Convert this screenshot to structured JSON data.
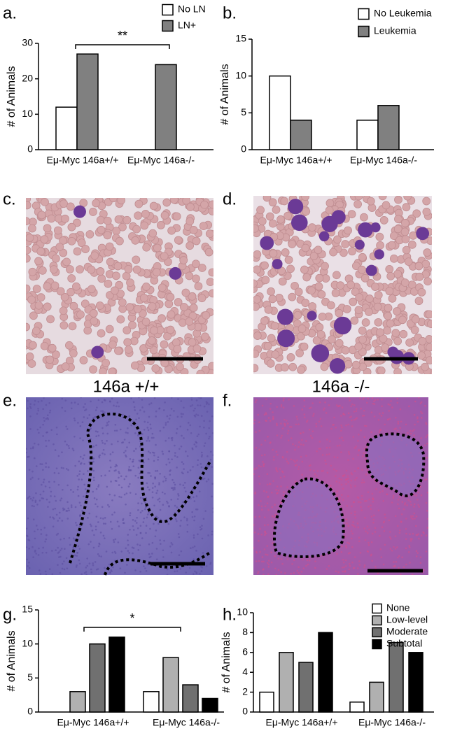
{
  "chart_data": [
    {
      "type": "bar",
      "panel_label": "a.",
      "y_label": "# of Animals",
      "annotation": "**",
      "categories": [
        "Eμ-Myc 146a+/+",
        "Eμ-Myc 146a-/-"
      ],
      "series": [
        {
          "name": "No LN",
          "color": "#ffffff",
          "values": [
            12,
            0
          ]
        },
        {
          "name": "LN+",
          "color": "#808080",
          "values": [
            27,
            24
          ]
        }
      ],
      "ylim": [
        0,
        30
      ],
      "yticks": [
        0,
        10,
        20,
        30
      ],
      "legend": "top-right"
    },
    {
      "type": "bar",
      "panel_label": "b.",
      "y_label": "# of Animals",
      "categories": [
        "Eμ-Myc 146a+/+",
        "Eμ-Myc 146a-/-"
      ],
      "series": [
        {
          "name": "No Leukemia",
          "color": "#ffffff",
          "values": [
            10,
            4
          ]
        },
        {
          "name": "Leukemia",
          "color": "#808080",
          "values": [
            4,
            6
          ]
        }
      ],
      "ylim": [
        0,
        15
      ],
      "yticks": [
        0,
        5,
        10,
        15
      ],
      "legend": "top-right"
    },
    {
      "type": "bar",
      "panel_label": "g.",
      "y_label": "# of Animals",
      "annotation": "*",
      "categories": [
        "Eμ-Myc 146a+/+",
        "Eμ-Myc 146a-/-"
      ],
      "series": [
        {
          "name": "None",
          "color": "#ffffff",
          "values": [
            0,
            3
          ]
        },
        {
          "name": "Low-level",
          "color": "#b0b0b0",
          "values": [
            3,
            8
          ]
        },
        {
          "name": "Moderate",
          "color": "#707070",
          "values": [
            10,
            4
          ]
        },
        {
          "name": "Subtotal",
          "color": "#000000",
          "values": [
            11,
            2
          ]
        }
      ],
      "ylim": [
        0,
        15
      ],
      "yticks": [
        0,
        5,
        10,
        15
      ]
    },
    {
      "type": "bar",
      "panel_label": "h.",
      "y_label": "# of Animals",
      "categories": [
        "Eμ-Myc 146a+/+",
        "Eμ-Myc 146a-/-"
      ],
      "series": [
        {
          "name": "None",
          "color": "#ffffff",
          "values": [
            2,
            1
          ]
        },
        {
          "name": "Low-level",
          "color": "#b0b0b0",
          "values": [
            6,
            3
          ]
        },
        {
          "name": "Moderate",
          "color": "#707070",
          "values": [
            5,
            7
          ]
        },
        {
          "name": "Subtotal",
          "color": "#000000",
          "values": [
            8,
            6
          ]
        }
      ],
      "ylim": [
        0,
        10
      ],
      "yticks": [
        0,
        2,
        4,
        6,
        8,
        10
      ],
      "legend": "top-right"
    }
  ],
  "images": [
    {
      "panel_label": "c."
    },
    {
      "panel_label": "d."
    },
    {
      "panel_label": "e.",
      "title": "146a +/+"
    },
    {
      "panel_label": "f.",
      "title": "146a -/-"
    }
  ]
}
